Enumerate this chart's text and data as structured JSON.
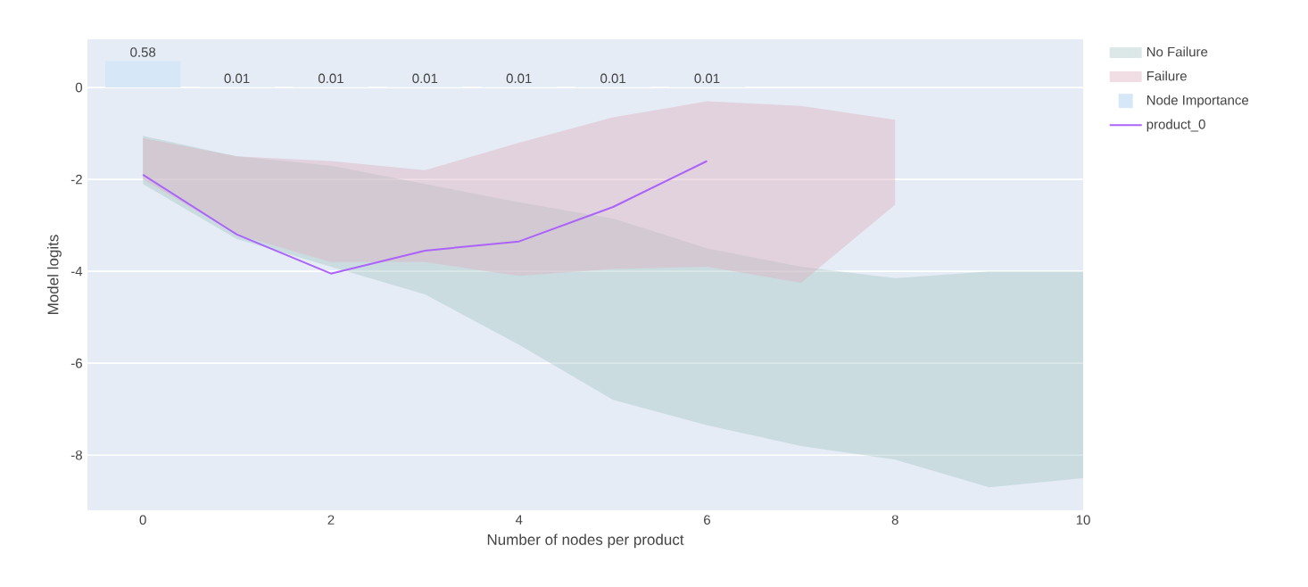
{
  "chart_data": {
    "type": "line",
    "xlabel": "Number of nodes per product",
    "ylabel": "Model logits",
    "xlim": [
      -0.59,
      10
    ],
    "ylim": [
      -9.2,
      1.05
    ],
    "xticks": [
      0,
      2,
      4,
      6,
      8,
      10
    ],
    "yticks": [
      -8,
      -6,
      -4,
      -2,
      0
    ],
    "grid": "y",
    "legend": "right",
    "series": [
      {
        "name": "No Failure",
        "type": "area",
        "color": "#a4c6c4",
        "x": [
          0,
          1,
          2,
          3,
          4,
          5,
          6,
          7,
          8,
          9,
          10
        ],
        "values": [
          null,
          null,
          null,
          null,
          null,
          null,
          null,
          null,
          null,
          null,
          null
        ],
        "upper": [
          -1.05,
          -1.5,
          -1.7,
          -2.1,
          -2.5,
          -2.85,
          -3.5,
          -3.9,
          -4.15,
          -4.0,
          -4.0
        ],
        "lower": [
          -2.1,
          -3.3,
          -3.9,
          -4.5,
          -5.6,
          -6.8,
          -7.35,
          -7.8,
          -8.1,
          -8.7,
          -8.5
        ]
      },
      {
        "name": "Failure",
        "type": "area",
        "color": "#dbadbc",
        "x": [
          0,
          1,
          2,
          3,
          4,
          5,
          6,
          7,
          8
        ],
        "values": [
          null,
          null,
          null,
          null,
          null,
          null,
          null,
          null,
          null
        ],
        "upper": [
          -1.1,
          -1.5,
          -1.6,
          -1.8,
          -1.2,
          -0.65,
          -0.3,
          -0.4,
          -0.7
        ],
        "lower": [
          -2.0,
          -3.2,
          -3.8,
          -3.8,
          -4.1,
          -3.95,
          -3.9,
          -4.25,
          -2.55
        ]
      },
      {
        "name": "Node Importance",
        "type": "bar",
        "color": "#d6e7f7",
        "x": [
          0,
          1,
          2,
          3,
          4,
          5,
          6
        ],
        "values": [
          0.58,
          0.01,
          0.01,
          0.01,
          0.01,
          0.01,
          0.01
        ],
        "value_labels": [
          "0.58",
          "0.01",
          "0.01",
          "0.01",
          "0.01",
          "0.01",
          "0.01"
        ]
      },
      {
        "name": "product_0",
        "color": "#ab63fa",
        "x": [
          0,
          1,
          2,
          3,
          4,
          5,
          6
        ],
        "values": [
          -1.9,
          -3.2,
          -4.05,
          -3.55,
          -3.35,
          -2.6,
          -1.6
        ]
      }
    ]
  }
}
